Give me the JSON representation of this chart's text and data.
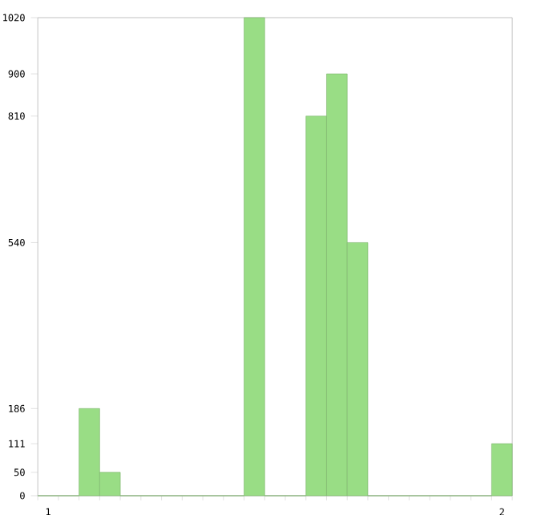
{
  "chart_data": {
    "type": "bar",
    "categories": [
      "1",
      null,
      null,
      null,
      null,
      null,
      null,
      null,
      null,
      null,
      null,
      null,
      null,
      null,
      null,
      null,
      null,
      null,
      null,
      null,
      null,
      null,
      "2"
    ],
    "values": [
      0,
      0,
      186,
      50,
      0,
      0,
      0,
      0,
      0,
      0,
      1020,
      0,
      0,
      810,
      900,
      540,
      0,
      0,
      0,
      0,
      0,
      0,
      111
    ],
    "color": "#99dd85",
    "ylim": [
      0,
      1020
    ],
    "yticks": [
      0,
      50,
      111,
      186,
      540,
      810,
      900,
      1020
    ]
  }
}
